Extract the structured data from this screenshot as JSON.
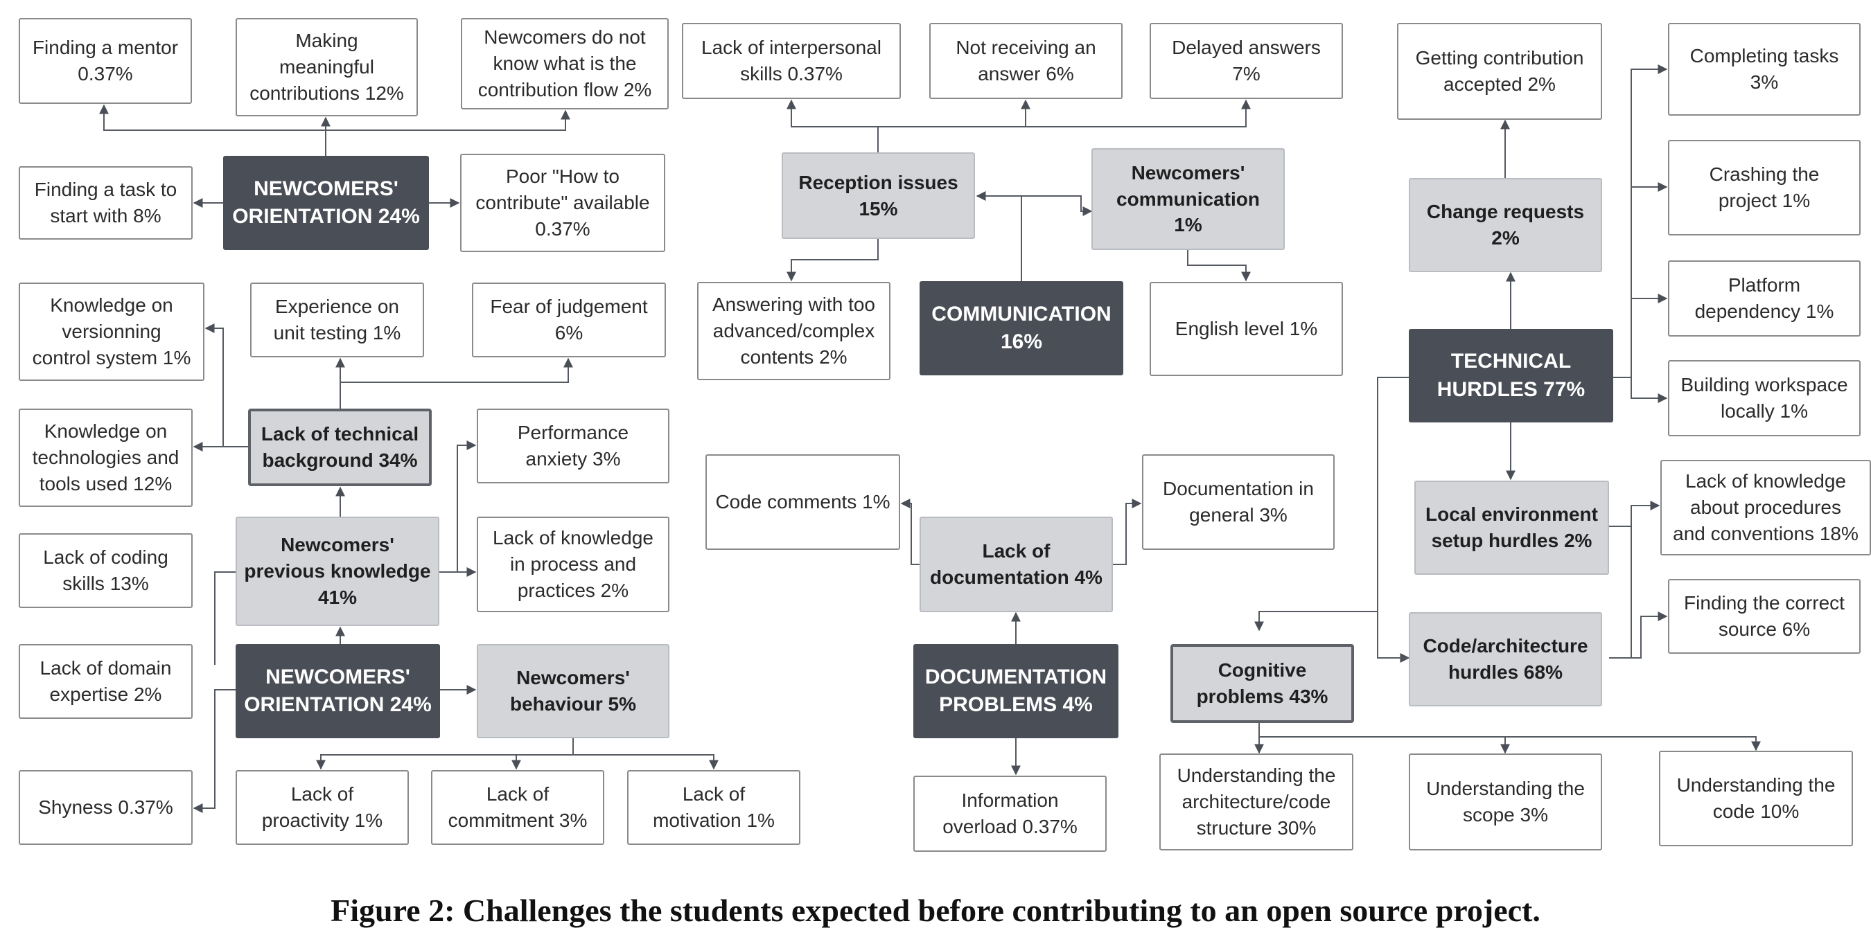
{
  "nodes": {
    "n_mentor": "Finding a mentor\n0.37%",
    "n_meaningful": "Making\nmeaningful\ncontributions 12%",
    "n_flow": "Newcomers do not\nknow what is the\ncontribution flow 2%",
    "n_task": "Finding a task to\nstart with 8%",
    "n_orient1": "NEWCOMERS'\nORIENTATION 24%",
    "n_howto": "Poor \"How to\ncontribute\" available\n0.37%",
    "n_vcs": "Knowledge on\nversionning\ncontrol system 1%",
    "n_unittest": "Experience on\nunit testing 1%",
    "n_fear": "Fear of judgement\n6%",
    "n_techtools": "Knowledge on\ntechnologies and\ntools used 12%",
    "n_techbg": "Lack of technical\nbackground 34%",
    "n_perf": "Performance\nanxiety 3%",
    "n_coding": "Lack of coding\nskills 13%",
    "n_prevknow": "Newcomers'\nprevious knowledge\n41%",
    "n_process": "Lack of knowledge\nin process and\npractices 2%",
    "n_domain": "Lack  of domain\nexpertise 2%",
    "n_orient2": "NEWCOMERS'\nORIENTATION 24%",
    "n_behaviour": "Newcomers'\nbehaviour 5%",
    "n_shyness": "Shyness 0.37%",
    "n_proactivity": "Lack of\nproactivity 1%",
    "n_commitment": "Lack of\ncommitment 3%",
    "n_motivation": "Lack of\nmotivation 1%",
    "n_interpersonal": "Lack of interpersonal\nskills 0.37%",
    "n_noanswer": "Not receiving an\nanswer 6%",
    "n_delayed": "Delayed answers\n7%",
    "n_reception": "Reception issues\n15%",
    "n_newcomm": "Newcomers'\ncommunication\n1%",
    "n_advanced": "Answering with too\nadvanced/complex\ncontents 2%",
    "n_communication": "COMMUNICATION\n16%",
    "n_english": "English level 1%",
    "n_codecomments": "Code comments 1%",
    "n_docgeneral": "Documentation in\ngeneral 3%",
    "n_lackdoc": "Lack of\ndocumentation 4%",
    "n_docproblems": "DOCUMENTATION\nPROBLEMS 4%",
    "n_overload": "Information\noverload 0.37%",
    "n_accepted": "Getting contribution\naccepted 2%",
    "n_changereq": "Change requests\n2%",
    "n_technical": "TECHNICAL\nHURDLES 77%",
    "n_localenv": "Local environment\nsetup hurdles 2%",
    "n_codearch": "Code/architecture\nhurdles 68%",
    "n_cognitive": "Cognitive\nproblems 43%",
    "n_completing": "Completing tasks\n3%",
    "n_crashing": "Crashing the\nproject 1%",
    "n_platform": "Platform\ndependency 1%",
    "n_workspace": "Building workspace\nlocally 1%",
    "n_procedures": "Lack of knowledge\nabout procedures\nand conventions 18%",
    "n_correctsource": "Finding the correct\nsource 6%",
    "n_archstruct": "Understanding the\narchitecture/code\nstructure 30%",
    "n_scope": "Understanding the\nscope 3%",
    "n_code": "Understanding the\ncode 10%"
  },
  "caption": "Figure 2: Challenges the students expected before contributing to an open source project."
}
